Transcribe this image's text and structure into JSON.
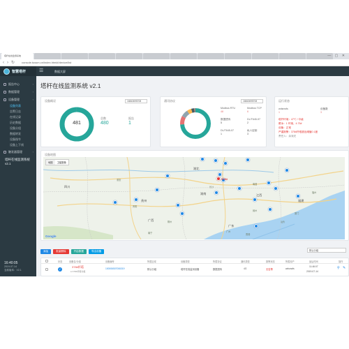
{
  "browser": {
    "tabs": [
      "塔杆在线监测系统",
      "",
      "",
      "",
      "",
      "",
      "",
      "",
      "",
      "",
      "",
      ""
    ],
    "url": "console.tussm.cn/index.html#/device/list",
    "window_controls": "— ▢ ✕"
  },
  "app": {
    "logo_text": "智慧塔杆",
    "screen_link": "数据大屏",
    "page_title": "塔杆在线监测系统  v2.1"
  },
  "sidebar": {
    "items": [
      {
        "label": "报告中心",
        "arrow": "‹"
      },
      {
        "label": "数据管理",
        "arrow": "‹"
      },
      {
        "label": "设备管理",
        "arrow": "‹"
      }
    ],
    "subitems": [
      {
        "label": "设备列表",
        "active": true
      },
      {
        "label": "告警日志",
        "active": false
      },
      {
        "label": "在线记录",
        "active": false
      },
      {
        "label": "历史数据",
        "active": false
      },
      {
        "label": "设备分组",
        "active": false
      },
      {
        "label": "数据转发",
        "active": false
      },
      {
        "label": "设备指令",
        "active": false
      },
      {
        "label": "设备上下线",
        "active": false
      }
    ],
    "extra_item": {
      "label": "触发器管理",
      "arrow": "‹"
    },
    "system_title": "塔杆在线监测系统  v2.1",
    "clock": "16:40:05",
    "date": "2019-07-14",
    "version": "当前版本：V2.1"
  },
  "overview": {
    "title": "设备概况",
    "select": "16843695708",
    "total_center": "481",
    "total_label": "总数",
    "total_value": "480",
    "alarm_label": "报告",
    "alarm_value": "1",
    "donut": [
      {
        "value": 480,
        "color": "#26a69a"
      },
      {
        "value": 1,
        "color": "#455a64"
      }
    ]
  },
  "protocol": {
    "title": "通讯协议",
    "select": "16843695708",
    "entries": [
      {
        "name": "Modbus RTU",
        "value": "48"
      },
      {
        "name": "Modbus TCP",
        "value": "6"
      },
      {
        "name": "数据透传",
        "value": "5"
      },
      {
        "name": "DL/T645-97",
        "value": "2"
      },
      {
        "name": "DL/T645-07",
        "value": "1"
      },
      {
        "name": "私人定制",
        "value": "3"
      }
    ],
    "donut": [
      {
        "value": 48,
        "color": "#26a69a"
      },
      {
        "value": 6,
        "color": "#e57373"
      },
      {
        "value": 5,
        "color": "#90a4ae"
      },
      {
        "value": 3,
        "color": "#ffb74d"
      },
      {
        "value": 2,
        "color": "#455a64"
      },
      {
        "value": 1,
        "color": "#a1887f"
      }
    ]
  },
  "status": {
    "title": "运行状态",
    "device_id_label": "wdsnwfs",
    "device_count": "1",
    "state_label": "设备数",
    "state_value": "3",
    "lines": [
      "塔杆环境：47℃ / 中级",
      "覆冰：1 环境，4.75#",
      "设备：正常",
      "严重报警：378#杆塔超出阈值0.1度",
      "责任人：余深光"
    ]
  },
  "map": {
    "title": "设备地图",
    "tabs": [
      "地图",
      "卫星图像"
    ],
    "pin_label": "3784",
    "google": "Google",
    "labels": [
      {
        "text": "四川",
        "big": true
      },
      {
        "text": "湖北",
        "big": true
      },
      {
        "text": "湖南",
        "big": true
      },
      {
        "text": "江西",
        "big": true
      },
      {
        "text": "广东",
        "big": true
      },
      {
        "text": "广西",
        "big": true
      },
      {
        "text": "福建",
        "big": true
      },
      {
        "text": "贵州",
        "big": true
      },
      {
        "text": "重庆",
        "big": false
      },
      {
        "text": "长沙",
        "big": false
      },
      {
        "text": "南昌",
        "big": false
      },
      {
        "text": "广州",
        "big": false
      },
      {
        "text": "福州",
        "big": false
      },
      {
        "text": "香港",
        "big": false
      },
      {
        "text": "桂林",
        "big": false
      },
      {
        "text": "贵阳",
        "big": false
      },
      {
        "text": "柳州",
        "big": false
      },
      {
        "text": "赣州",
        "big": false
      },
      {
        "text": "厦门",
        "big": false
      },
      {
        "text": "汕头",
        "big": false
      },
      {
        "text": "南宁",
        "big": false
      }
    ]
  },
  "toolbar": {
    "buttons": [
      {
        "label": "添加",
        "style": "blue"
      },
      {
        "label": "批量删除",
        "style": "red"
      },
      {
        "label": "开启数据",
        "style": "teal"
      },
      {
        "label": "导出设备",
        "style": "cyan"
      }
    ],
    "filter": "默认分组"
  },
  "table": {
    "headers": [
      "状态",
      "设备名/分组",
      "设备编号",
      "所属区域",
      "设备类型",
      "所属协议",
      "通讯类型",
      "报警状态",
      "所属用户",
      "最后时间",
      "操作"
    ],
    "rows": [
      {
        "name": "378#杆塔",
        "group": "● 3784杆塔分组",
        "code": "100006507006319",
        "area": "默认分组",
        "type": "塔杆在线监测设备",
        "protocol": "数据透传",
        "comm": "4G",
        "alarm": "无告警",
        "user": "wdsnwfs",
        "time": "11:46:07",
        "date": "2019-07-14"
      }
    ]
  }
}
